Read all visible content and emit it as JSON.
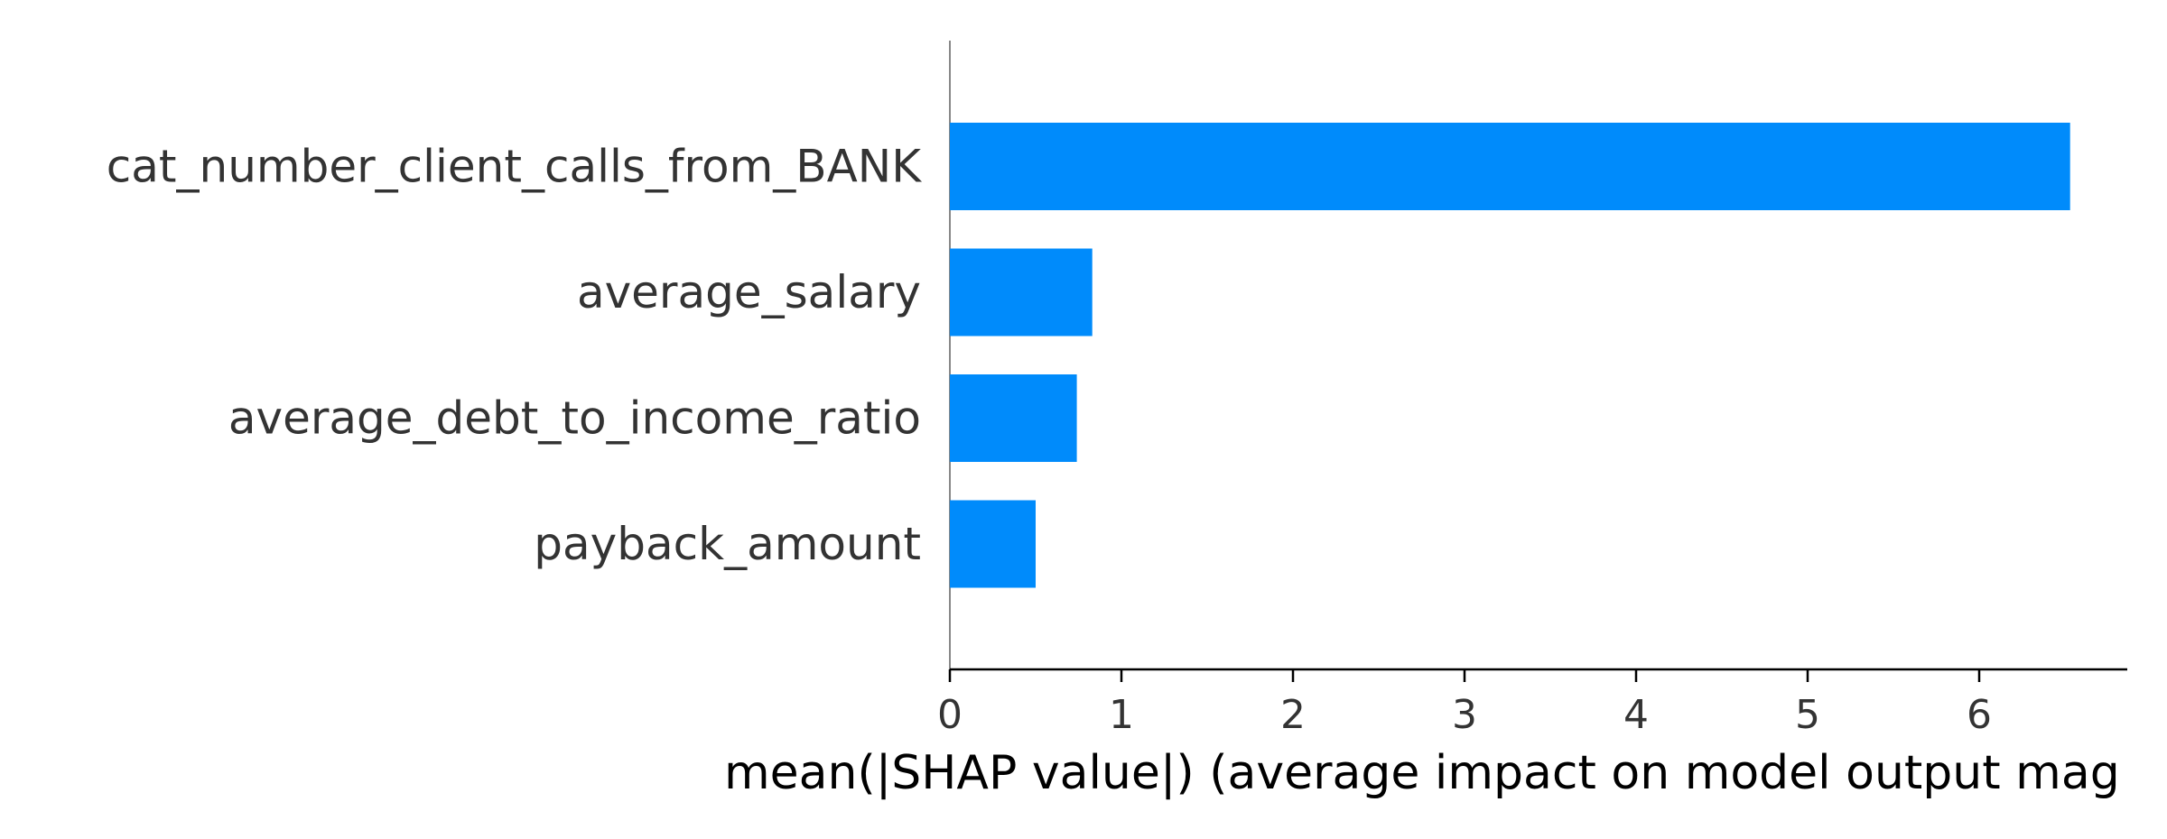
{
  "chart_data": {
    "type": "bar",
    "orientation": "horizontal",
    "categories": [
      "cat_number_client_calls_from_BANK",
      "average_salary",
      "average_debt_to_income_ratio",
      "payback_amount"
    ],
    "values": [
      6.53,
      0.83,
      0.74,
      0.5
    ],
    "xticks": [
      "0",
      "1",
      "2",
      "3",
      "4",
      "5",
      "6"
    ],
    "xlim": [
      0,
      6.86
    ],
    "xlabel": "mean(|SHAP value|) (average impact on model output mag",
    "ylabel": "",
    "title": "",
    "grid": false,
    "colors": {
      "bar": "#008bfb",
      "text": "#333333",
      "axis": "#000000",
      "left_spine": "#888888"
    }
  }
}
